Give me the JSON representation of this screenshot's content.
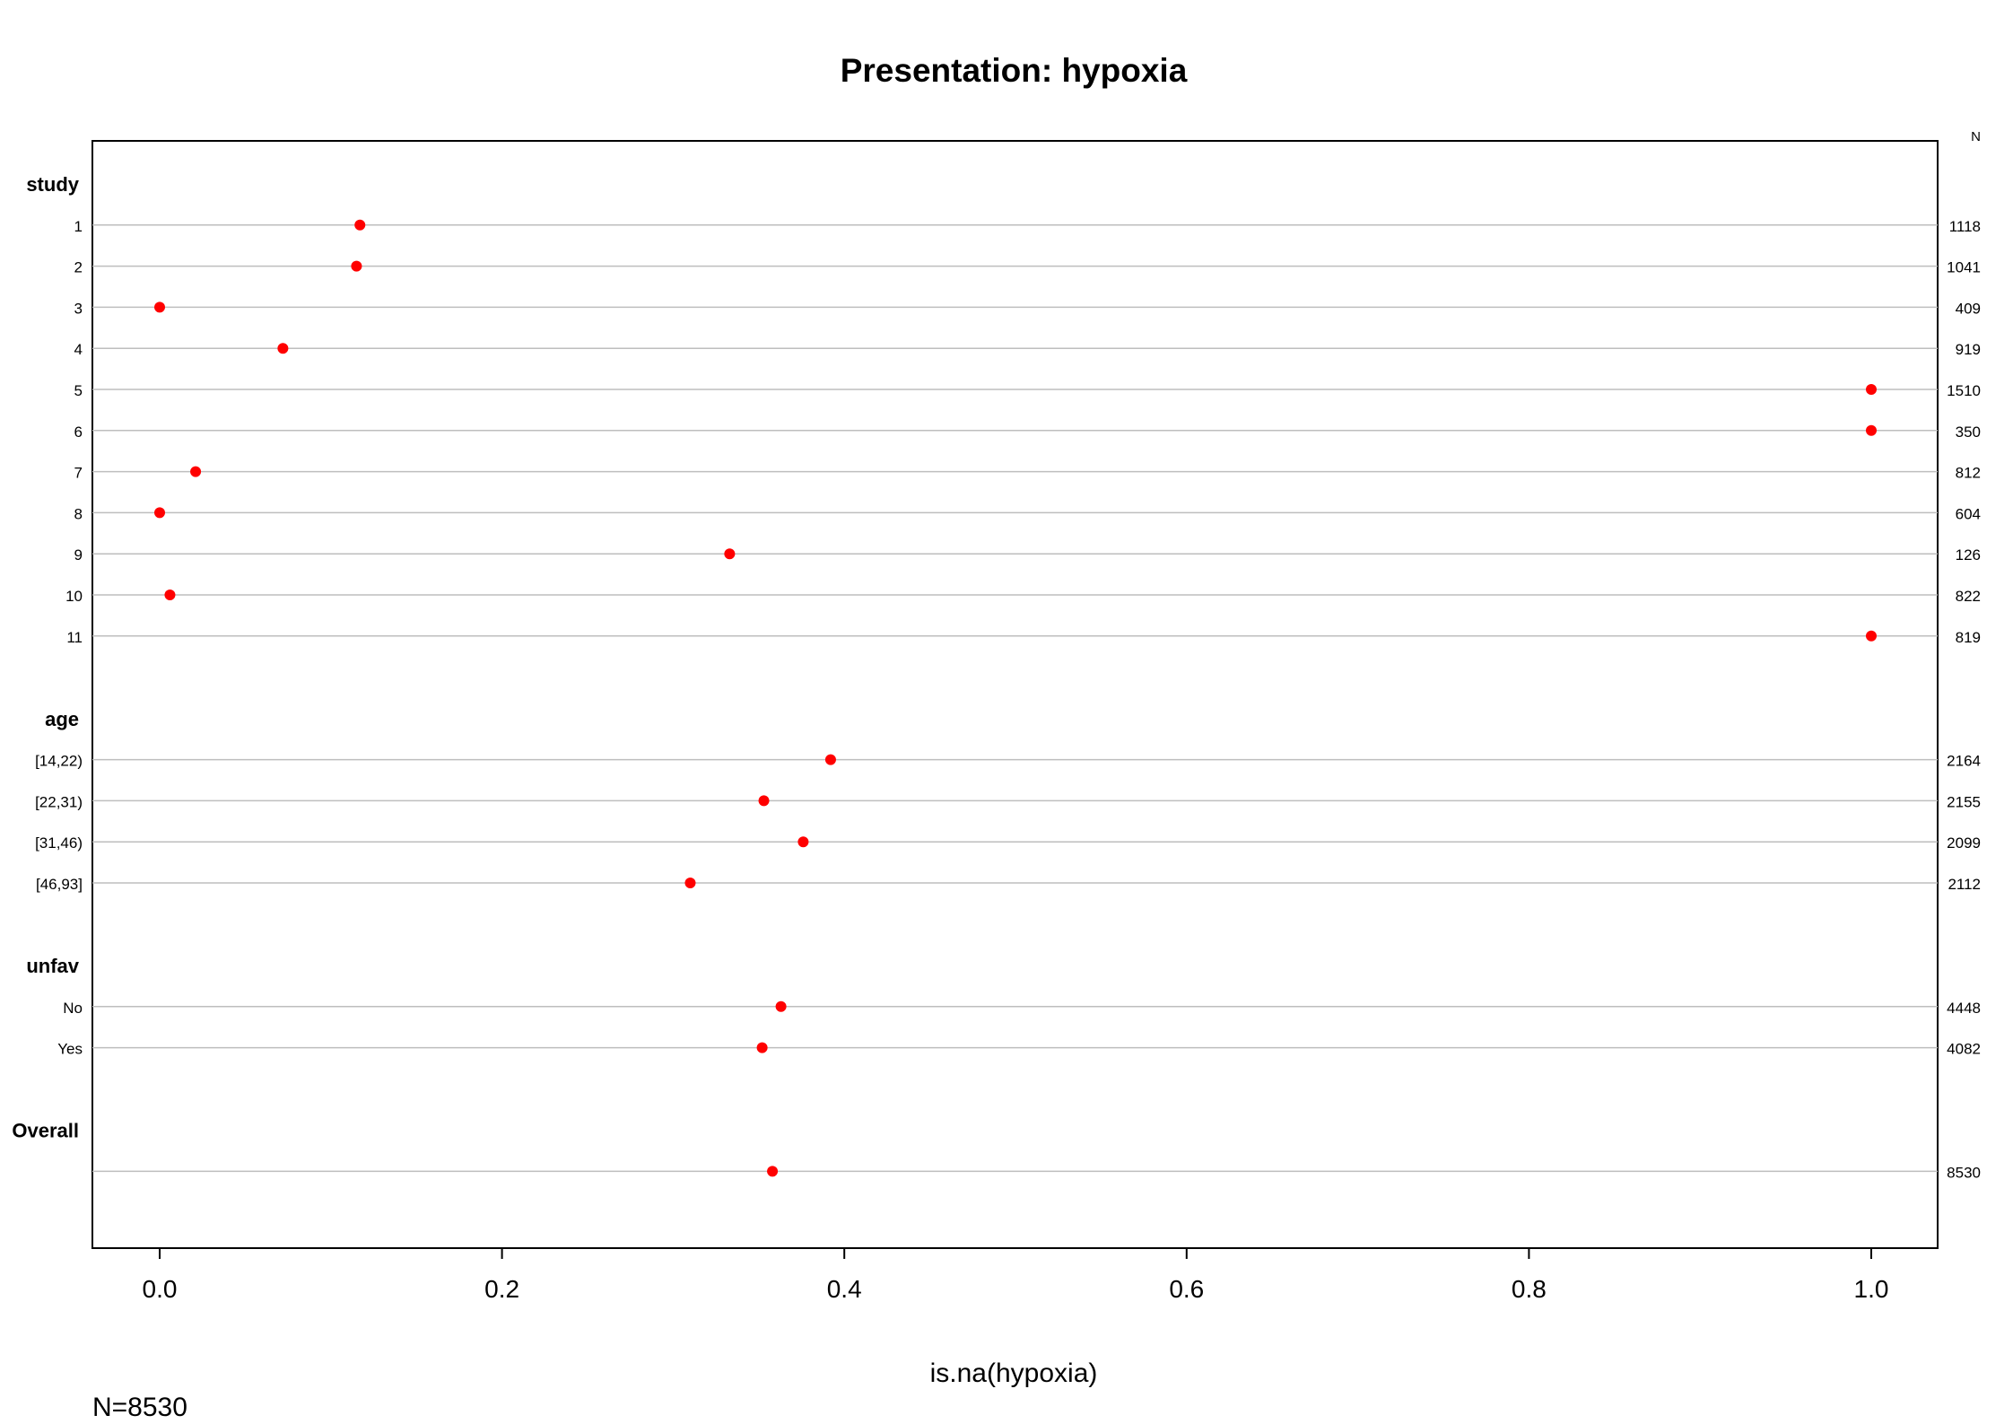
{
  "chart_data": {
    "type": "scatter",
    "title": "Presentation: hypoxia",
    "xlabel": "is.na(hypoxia)",
    "xlim": [
      -0.04,
      1.04
    ],
    "x_ticks": [
      "0.0",
      "0.2",
      "0.4",
      "0.6",
      "0.8",
      "1.0"
    ],
    "right_header": "N",
    "footnote": "N=8530",
    "point_color": "#ff0000",
    "grid_color": "#bebebe",
    "groups": [
      {
        "label": "study",
        "rows": [
          {
            "label": "1",
            "value": 0.117,
            "n": "1118"
          },
          {
            "label": "2",
            "value": 0.115,
            "n": "1041"
          },
          {
            "label": "3",
            "value": 0.0,
            "n": "409"
          },
          {
            "label": "4",
            "value": 0.072,
            "n": "919"
          },
          {
            "label": "5",
            "value": 1.0,
            "n": "1510"
          },
          {
            "label": "6",
            "value": 1.0,
            "n": "350"
          },
          {
            "label": "7",
            "value": 0.021,
            "n": "812"
          },
          {
            "label": "8",
            "value": 0.0,
            "n": "604"
          },
          {
            "label": "9",
            "value": 0.333,
            "n": "126"
          },
          {
            "label": "10",
            "value": 0.006,
            "n": "822"
          },
          {
            "label": "11",
            "value": 1.0,
            "n": "819"
          }
        ]
      },
      {
        "label": "age",
        "rows": [
          {
            "label": "[14,22)",
            "value": 0.392,
            "n": "2164"
          },
          {
            "label": "[22,31)",
            "value": 0.353,
            "n": "2155"
          },
          {
            "label": "[31,46)",
            "value": 0.376,
            "n": "2099"
          },
          {
            "label": "[46,93]",
            "value": 0.31,
            "n": "2112"
          }
        ]
      },
      {
        "label": "unfav",
        "rows": [
          {
            "label": "No",
            "value": 0.363,
            "n": "4448"
          },
          {
            "label": "Yes",
            "value": 0.352,
            "n": "4082"
          }
        ]
      },
      {
        "label": "Overall",
        "rows": [
          {
            "label": "",
            "value": 0.358,
            "n": "8530"
          }
        ]
      }
    ]
  }
}
